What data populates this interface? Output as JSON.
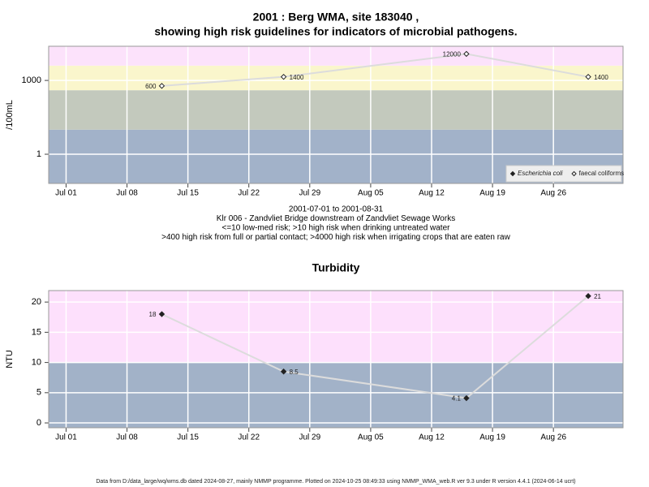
{
  "chart_data": [
    {
      "type": "line",
      "title": [
        "2001 : Berg WMA, site 183040 ,",
        "showing high risk guidelines for indicators of microbial pathogens."
      ],
      "notes": [
        "2001-07-01 to 2001-08-31",
        "Klr 006 - Zandvliet Bridge downstream of Zandvliet Sewage Works",
        "<=10 low-med risk; >10 high risk when drinking untreated water",
        ">400 high risk from full or partial contact; >4000 high risk when irrigating crops that are eaten raw"
      ],
      "y_label": "/100mL",
      "log_y": true,
      "x": [
        "2001-07-12",
        "2001-07-26",
        "2001-08-16",
        "2001-08-30"
      ],
      "xlim": [
        "2001-06-29",
        "2001-09-03"
      ],
      "xticks": [
        {
          "value": "2001-07-01",
          "label": "Jul 01"
        },
        {
          "value": "2001-07-08",
          "label": "Jul 08"
        },
        {
          "value": "2001-07-15",
          "label": "Jul 15"
        },
        {
          "value": "2001-07-22",
          "label": "Jul 22"
        },
        {
          "value": "2001-07-29",
          "label": "Jul 29"
        },
        {
          "value": "2001-08-05",
          "label": "Aug 05"
        },
        {
          "value": "2001-08-12",
          "label": "Aug 12"
        },
        {
          "value": "2001-08-19",
          "label": "Aug 19"
        },
        {
          "value": "2001-08-26",
          "label": "Aug 26"
        }
      ],
      "ylim": [
        0.065,
        24500
      ],
      "yticks": [
        1,
        1000
      ],
      "grid": true,
      "bands": [
        {
          "from": 0.065,
          "to": 10,
          "color": "#a2b2c9"
        },
        {
          "from": 10,
          "to": 400,
          "color": "#c3c9bd"
        },
        {
          "from": 400,
          "to": 4000,
          "color": "#faf6cc"
        },
        {
          "from": 4000,
          "to": 24500,
          "color": "#fce2fb"
        }
      ],
      "legend": "bottom-right",
      "series": [
        {
          "name": "Escherichia coli",
          "marker": "filled",
          "color": "#222222",
          "values": [
            null,
            null,
            null,
            null
          ]
        },
        {
          "name": "faecal coliforms",
          "marker": "open",
          "color": "#222222",
          "values": [
            600,
            1400,
            12000,
            1400
          ]
        }
      ]
    },
    {
      "type": "line",
      "title": [
        "Turbidity"
      ],
      "y_label": "NTU",
      "log_y": false,
      "x": [
        "2001-07-12",
        "2001-07-26",
        "2001-08-16",
        "2001-08-30"
      ],
      "xlim": [
        "2001-06-29",
        "2001-09-03"
      ],
      "xticks": [
        {
          "value": "2001-07-01",
          "label": "Jul 01"
        },
        {
          "value": "2001-07-08",
          "label": "Jul 08"
        },
        {
          "value": "2001-07-15",
          "label": "Jul 15"
        },
        {
          "value": "2001-07-22",
          "label": "Jul 22"
        },
        {
          "value": "2001-07-29",
          "label": "Jul 29"
        },
        {
          "value": "2001-08-05",
          "label": "Aug 05"
        },
        {
          "value": "2001-08-12",
          "label": "Aug 12"
        },
        {
          "value": "2001-08-19",
          "label": "Aug 19"
        },
        {
          "value": "2001-08-26",
          "label": "Aug 26"
        }
      ],
      "ylim": [
        -0.8,
        21.9
      ],
      "yticks": [
        0,
        5,
        10,
        15,
        20
      ],
      "grid": true,
      "bands": [
        {
          "from": -0.8,
          "to": 10,
          "color": "#a2b2c8"
        },
        {
          "from": 10,
          "to": 21.9,
          "color": "#fde0fc"
        }
      ],
      "series": [
        {
          "name": "Turbidity",
          "marker": "filled",
          "color": "#222222",
          "values": [
            18,
            8.5,
            4.1,
            21
          ]
        }
      ]
    }
  ],
  "footer": "Data from D:/data_large/wq/wms.db dated 2024-08-27, mainly NMMP programme. Plotted on 2024-10-25 08:49:33 using NMMP_WMA_web.R ver 9.3 under R version 4.4.1 (2024-06-14 ucrt)"
}
